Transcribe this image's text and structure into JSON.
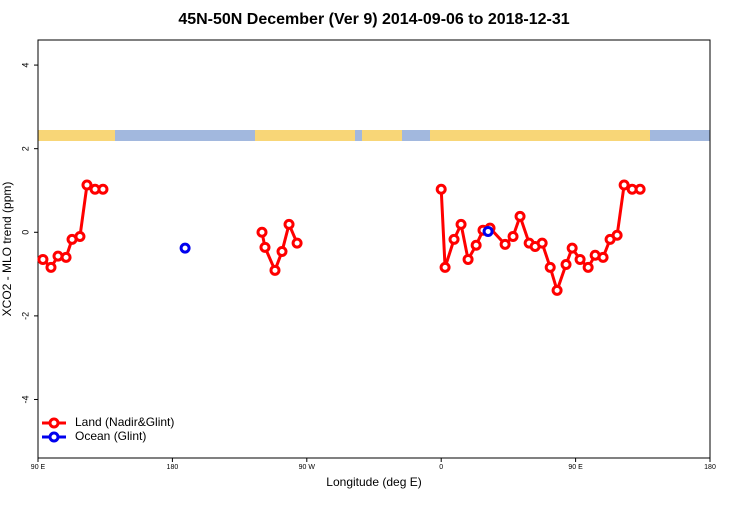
{
  "chart_data": {
    "type": "line",
    "title": "45N-50N December (Ver 9)   2014-09-06 to 2018-12-31",
    "x_label": "Longitude (deg E)",
    "y_label": "XCO2 - MLO trend (ppm)",
    "xlim": [
      90,
      540
    ],
    "xticks": [
      {
        "value": 90,
        "label": "90 E"
      },
      {
        "value": 180,
        "label": "180"
      },
      {
        "value": 270,
        "label": "90 W"
      },
      {
        "value": 360,
        "label": "0"
      },
      {
        "value": 450,
        "label": "90 E"
      },
      {
        "value": 540,
        "label": "180"
      }
    ],
    "ylim": [
      -5.4,
      4.6
    ],
    "yticks": [
      -4,
      -2,
      0,
      2,
      4
    ],
    "legend": "bottom-left",
    "series": [
      {
        "name": "Land (Nadir&Glint)",
        "color": "#ff0000",
        "line": true,
        "x": [
          93.3,
          98.7,
          103.4,
          108.8,
          112.8,
          118.1,
          122.8,
          128.2,
          133.5,
          null,
          240,
          242,
          248.7,
          253.4,
          258.1,
          263.5,
          null,
          360,
          362.6,
          368.6,
          373.3,
          378,
          383.4,
          388,
          392.7,
          402.8,
          408.1,
          412.8,
          418.9,
          422.9,
          427.6,
          433,
          437.6,
          443.6,
          447.7,
          453,
          458.4,
          463.1,
          468.4,
          473.1,
          477.8,
          482.5,
          487.9,
          493.2
        ],
        "values": [
          -0.65,
          -0.84,
          -0.57,
          -0.6,
          -0.17,
          -0.1,
          1.13,
          1.03,
          1.03,
          null,
          0.0,
          -0.36,
          -0.91,
          -0.46,
          0.19,
          -0.26,
          null,
          1.03,
          -0.84,
          -0.17,
          0.19,
          -0.65,
          -0.31,
          0.05,
          0.1,
          -0.29,
          -0.1,
          0.38,
          -0.26,
          -0.34,
          -0.26,
          -0.84,
          -1.39,
          -0.77,
          -0.38,
          -0.65,
          -0.84,
          -0.55,
          -0.6,
          -0.17,
          -0.07,
          1.13,
          1.03,
          1.03
        ]
      },
      {
        "name": "Ocean (Glint)",
        "color": "#0000ee",
        "line": false,
        "x": [
          188.5,
          391.4
        ],
        "values": [
          -0.38,
          0.02
        ]
      }
    ]
  }
}
